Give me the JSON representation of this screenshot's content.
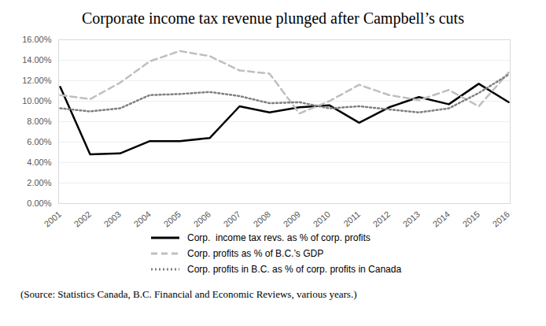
{
  "chart_data": {
    "type": "line",
    "title": "Corporate income tax revenue plunged after Campbell’s cuts",
    "caption": "(Source: Statistics Canada, B.C. Financial and Economic Reviews, various years.)",
    "categories": [
      "2001",
      "2002",
      "2003",
      "2004",
      "2005",
      "2006",
      "2007",
      "2008",
      "2009",
      "2010",
      "2011",
      "2012",
      "2013",
      "2014",
      "2015",
      "2016"
    ],
    "series": [
      {
        "name": "Corp.  income tax revs. as % of corp. profits",
        "color": "#000000",
        "line_style": "solid",
        "values": [
          11.4,
          4.8,
          4.9,
          6.1,
          6.1,
          6.4,
          9.5,
          8.9,
          9.4,
          9.6,
          7.9,
          9.4,
          10.4,
          9.7,
          11.7,
          9.9
        ]
      },
      {
        "name": "Corp. profits as % of B.C.’s GDP",
        "color": "#bfbfbf",
        "line_style": "dashed",
        "values": [
          10.6,
          10.2,
          11.8,
          13.9,
          14.9,
          14.4,
          13.0,
          12.7,
          8.8,
          10.0,
          11.6,
          10.6,
          10.1,
          11.1,
          9.5,
          12.8
        ]
      },
      {
        "name": "Corp. profits in B.C. as % of corp. profits in Canada",
        "color": "#808080",
        "line_style": "dotted",
        "values": [
          9.3,
          9.0,
          9.3,
          10.6,
          10.7,
          10.9,
          10.5,
          9.8,
          9.9,
          9.3,
          9.5,
          9.2,
          8.9,
          9.3,
          10.8,
          12.6
        ]
      }
    ],
    "ylim": [
      0,
      16
    ],
    "yticks": [
      {
        "value": 0,
        "label": "0.00%"
      },
      {
        "value": 2,
        "label": "2.00%"
      },
      {
        "value": 4,
        "label": "4.00%"
      },
      {
        "value": 6,
        "label": "6.00%"
      },
      {
        "value": 8,
        "label": "8.00%"
      },
      {
        "value": 10,
        "label": "10.00%"
      },
      {
        "value": 12,
        "label": "12.00%"
      },
      {
        "value": 14,
        "label": "14.00%"
      },
      {
        "value": 16,
        "label": "16.00%"
      }
    ],
    "grid": true,
    "legend": "bottom"
  }
}
